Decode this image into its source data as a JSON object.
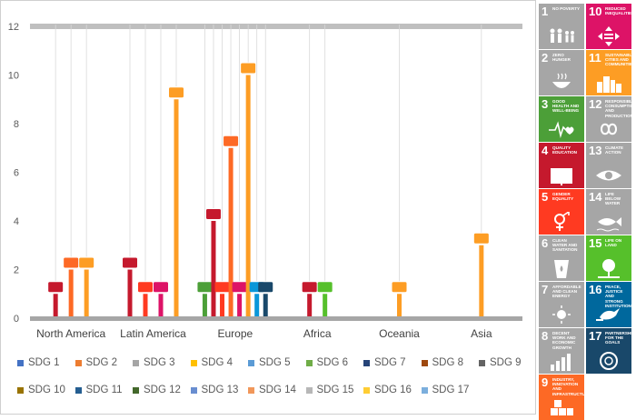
{
  "chart_data": {
    "type": "bar",
    "categories": [
      "North America",
      "Latin America",
      "Europe",
      "Africa",
      "Oceania",
      "Asia"
    ],
    "ylim": [
      0,
      12
    ],
    "yticks": [
      0,
      2,
      4,
      6,
      8,
      10,
      12
    ],
    "series": [
      {
        "name": "SDG 1",
        "color": "#e5243b",
        "values": [
          0,
          0,
          0,
          0,
          0,
          0
        ]
      },
      {
        "name": "SDG 2",
        "color": "#dda63a",
        "values": [
          0,
          0,
          0,
          0,
          0,
          0
        ]
      },
      {
        "name": "SDG 3",
        "color": "#4c9f38",
        "values": [
          0,
          0,
          1,
          0,
          0,
          0
        ]
      },
      {
        "name": "SDG 4",
        "color": "#c5192d",
        "values": [
          1,
          2,
          4,
          1,
          0,
          0
        ]
      },
      {
        "name": "SDG 5",
        "color": "#ff3a21",
        "values": [
          0,
          1,
          1,
          0,
          0,
          0
        ]
      },
      {
        "name": "SDG 6",
        "color": "#26bde2",
        "values": [
          0,
          0,
          0,
          0,
          0,
          0
        ]
      },
      {
        "name": "SDG 7",
        "color": "#fcc30b",
        "values": [
          0,
          0,
          0,
          0,
          0,
          0
        ]
      },
      {
        "name": "SDG 8",
        "color": "#a21942",
        "values": [
          0,
          0,
          0,
          0,
          0,
          0
        ]
      },
      {
        "name": "SDG 9",
        "color": "#fd6925",
        "values": [
          2,
          0,
          7,
          0,
          0,
          0
        ]
      },
      {
        "name": "SDG 10",
        "color": "#dd1367",
        "values": [
          0,
          1,
          1,
          0,
          0,
          0
        ]
      },
      {
        "name": "SDG 11",
        "color": "#fd9d24",
        "values": [
          2,
          9,
          10,
          0,
          1,
          3
        ]
      },
      {
        "name": "SDG 12",
        "color": "#bf8b2e",
        "values": [
          0,
          0,
          0,
          0,
          0,
          0
        ]
      },
      {
        "name": "SDG 13",
        "color": "#3f7e44",
        "values": [
          0,
          0,
          0,
          0,
          0,
          0
        ]
      },
      {
        "name": "SDG 14",
        "color": "#0a97d9",
        "values": [
          0,
          0,
          1,
          0,
          0,
          0
        ]
      },
      {
        "name": "SDG 15",
        "color": "#56c02b",
        "values": [
          0,
          0,
          0,
          1,
          0,
          0
        ]
      },
      {
        "name": "SDG 16",
        "color": "#00689d",
        "values": [
          0,
          0,
          0,
          0,
          0,
          0
        ]
      },
      {
        "name": "SDG 17",
        "color": "#19486a",
        "values": [
          0,
          0,
          1,
          0,
          0,
          0
        ]
      }
    ]
  },
  "legend": [
    {
      "label": "SDG 1",
      "color": "#4472c4"
    },
    {
      "label": "SDG 2",
      "color": "#ed7d31"
    },
    {
      "label": "SDG 3",
      "color": "#a5a5a5"
    },
    {
      "label": "SDG 4",
      "color": "#ffc000"
    },
    {
      "label": "SDG 5",
      "color": "#5b9bd5"
    },
    {
      "label": "SDG 6",
      "color": "#70ad47"
    },
    {
      "label": "SDG 7",
      "color": "#264478"
    },
    {
      "label": "SDG 8",
      "color": "#9e480e"
    },
    {
      "label": "SDG 9",
      "color": "#636363"
    },
    {
      "label": "SDG 10",
      "color": "#997300"
    },
    {
      "label": "SDG 11",
      "color": "#255e91"
    },
    {
      "label": "SDG 12",
      "color": "#43682b"
    },
    {
      "label": "SDG 13",
      "color": "#698ed0"
    },
    {
      "label": "SDG 14",
      "color": "#f1975a"
    },
    {
      "label": "SDG 15",
      "color": "#b7b7b7"
    },
    {
      "label": "SDG 16",
      "color": "#ffcd33"
    },
    {
      "label": "SDG 17",
      "color": "#7cafdd"
    }
  ],
  "sdg_tiles": [
    {
      "number": "1",
      "title": "No Poverty",
      "color": "#a6a6a6",
      "icon": "people-icon"
    },
    {
      "number": "10",
      "title": "Reduced Inequalities",
      "color": "#dd1367",
      "icon": "equality-arrows-icon"
    },
    {
      "number": "2",
      "title": "Zero Hunger",
      "color": "#a6a6a6",
      "icon": "bowl-icon"
    },
    {
      "number": "11",
      "title": "Sustainable Cities and Communities",
      "color": "#fd9d24",
      "icon": "city-icon"
    },
    {
      "number": "3",
      "title": "Good Health and Well-Being",
      "color": "#4c9f38",
      "icon": "heartbeat-icon"
    },
    {
      "number": "12",
      "title": "Responsible Consumption and Production",
      "color": "#a6a6a6",
      "icon": "infinity-icon"
    },
    {
      "number": "4",
      "title": "Quality Education",
      "color": "#c5192d",
      "icon": "book-icon"
    },
    {
      "number": "13",
      "title": "Climate Action",
      "color": "#a6a6a6",
      "icon": "eye-globe-icon"
    },
    {
      "number": "5",
      "title": "Gender Equality",
      "color": "#ff3a21",
      "icon": "gender-icon"
    },
    {
      "number": "14",
      "title": "Life Below Water",
      "color": "#a6a6a6",
      "icon": "fish-icon"
    },
    {
      "number": "6",
      "title": "Clean Water and Sanitation",
      "color": "#a6a6a6",
      "icon": "water-glass-icon"
    },
    {
      "number": "15",
      "title": "Life on Land",
      "color": "#56c02b",
      "icon": "tree-icon"
    },
    {
      "number": "7",
      "title": "Affordable and Clean Energy",
      "color": "#a6a6a6",
      "icon": "sun-power-icon"
    },
    {
      "number": "16",
      "title": "Peace, Justice and Strong Institutions",
      "color": "#00689d",
      "icon": "dove-icon"
    },
    {
      "number": "8",
      "title": "Decent Work and Economic Growth",
      "color": "#a6a6a6",
      "icon": "growth-chart-icon"
    },
    {
      "number": "17",
      "title": "Partnerships for the Goals",
      "color": "#19486a",
      "icon": "rings-icon"
    },
    {
      "number": "9",
      "title": "Industry, Innovation and Infrastructure",
      "color": "#fd6925",
      "icon": "cubes-icon"
    }
  ]
}
